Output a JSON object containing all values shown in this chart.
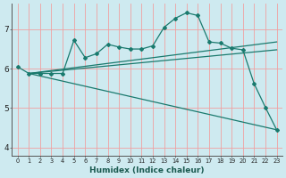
{
  "title": "",
  "xlabel": "Humidex (Indice chaleur)",
  "background_color": "#ceeaf0",
  "grid_color": "#f0a0a0",
  "line_color": "#1a7a6e",
  "xlim": [
    -0.5,
    23.5
  ],
  "ylim": [
    3.8,
    7.65
  ],
  "xticks": [
    0,
    1,
    2,
    3,
    4,
    5,
    6,
    7,
    8,
    9,
    10,
    11,
    12,
    13,
    14,
    15,
    16,
    17,
    18,
    19,
    20,
    21,
    22,
    23
  ],
  "yticks": [
    4,
    5,
    6,
    7
  ],
  "main_line_x": [
    0,
    1,
    2,
    3,
    4,
    5,
    6,
    7,
    8,
    9,
    10,
    11,
    12,
    13,
    14,
    15,
    16,
    17,
    18,
    19,
    20,
    21,
    22,
    23
  ],
  "main_line_y": [
    6.05,
    5.88,
    5.88,
    5.88,
    5.88,
    6.72,
    6.28,
    6.38,
    6.62,
    6.55,
    6.5,
    6.5,
    6.58,
    7.05,
    7.28,
    7.42,
    7.35,
    6.68,
    6.65,
    6.52,
    6.48,
    5.62,
    5.02,
    4.45
  ],
  "upper_line_x": [
    1,
    23
  ],
  "upper_line_y": [
    5.88,
    6.68
  ],
  "mid_line_x": [
    1,
    23
  ],
  "mid_line_y": [
    5.88,
    6.48
  ],
  "lower_line_x": [
    1,
    23
  ],
  "lower_line_y": [
    5.88,
    4.45
  ]
}
